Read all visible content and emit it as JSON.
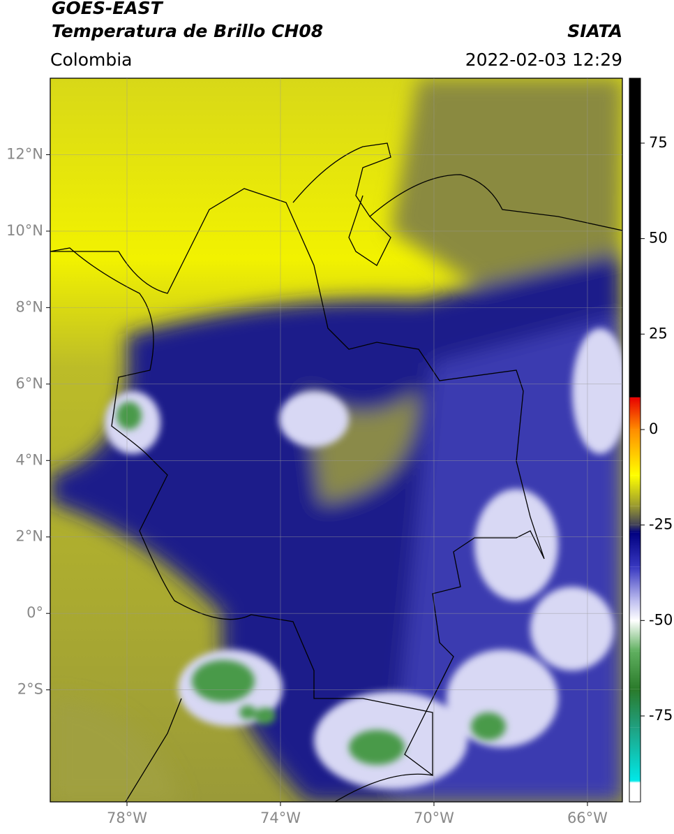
{
  "header": {
    "title": "GOES-EAST",
    "subtitle": "Temperatura de Brillo CH08",
    "region": "Colombia",
    "source": "SIATA",
    "datetime": "2022-02-03 12:29"
  },
  "map": {
    "xlim": [
      -80,
      -65.09
    ],
    "ylim": [
      -4.93,
      14
    ],
    "grid": true,
    "xticks": [
      {
        "value": -78,
        "label": "78°W"
      },
      {
        "value": -74,
        "label": "74°W"
      },
      {
        "value": -70,
        "label": "70°W"
      },
      {
        "value": -66,
        "label": "66°W"
      }
    ],
    "yticks": [
      {
        "value": 12,
        "label": "12°N"
      },
      {
        "value": 10,
        "label": "10°N"
      },
      {
        "value": 8,
        "label": "8°N"
      },
      {
        "value": 6,
        "label": "6°N"
      },
      {
        "value": 4,
        "label": "4°N"
      },
      {
        "value": 2,
        "label": "2°N"
      },
      {
        "value": 0,
        "label": "0°"
      },
      {
        "value": -2,
        "label": "2°S"
      }
    ]
  },
  "colorbar": {
    "clim": [
      -97.5,
      92
    ],
    "ticks": [
      75,
      50,
      25,
      0,
      -25,
      -50,
      -75
    ],
    "stops": [
      {
        "value": 92,
        "color": "#000000"
      },
      {
        "value": 8.5,
        "color": "#000000"
      },
      {
        "value": 8.4,
        "color": "#e80000"
      },
      {
        "value": 0,
        "color": "#ff8c00"
      },
      {
        "value": -12,
        "color": "#ffff00"
      },
      {
        "value": -20,
        "color": "#9a9a30"
      },
      {
        "value": -25,
        "color": "#404058"
      },
      {
        "value": -27,
        "color": "#000080"
      },
      {
        "value": -36,
        "color": "#3838c0"
      },
      {
        "value": -45,
        "color": "#c0c0f0"
      },
      {
        "value": -50,
        "color": "#ffffff"
      },
      {
        "value": -58,
        "color": "#60b060"
      },
      {
        "value": -68,
        "color": "#2a7a2a"
      },
      {
        "value": -78,
        "color": "#20a080"
      },
      {
        "value": -92,
        "color": "#00e8e8"
      },
      {
        "value": -92.5,
        "color": "#ffffff"
      },
      {
        "value": -97.5,
        "color": "#ffffff"
      }
    ]
  }
}
